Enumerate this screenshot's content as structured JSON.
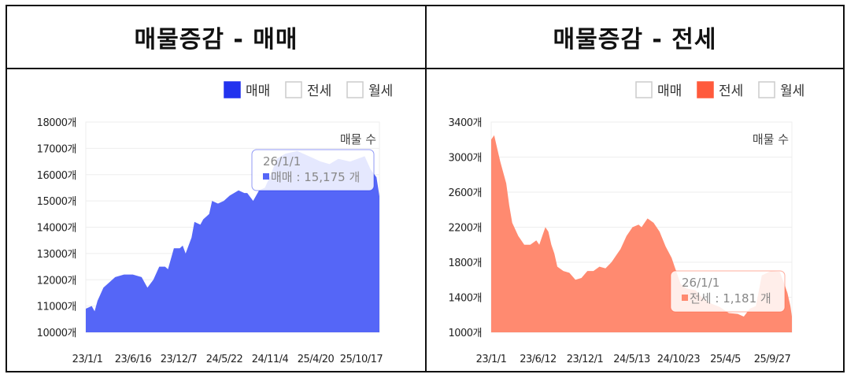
{
  "chart_data": [
    {
      "type": "area",
      "title": "매물증감 - 매매",
      "series_label": "매물 수",
      "legend": [
        {
          "name": "매매",
          "active": true
        },
        {
          "name": "전세",
          "active": false
        },
        {
          "name": "월세",
          "active": false
        }
      ],
      "color": "#5566f7",
      "legend_color": "#2233ee",
      "ylim": [
        10000,
        18000
      ],
      "yticks": [
        10000,
        11000,
        12000,
        13000,
        14000,
        15000,
        16000,
        17000,
        18000
      ],
      "ytick_suffix": "개",
      "xticks": [
        "23/1/1",
        "23/6/16",
        "23/12/7",
        "24/5/22",
        "24/11/4",
        "25/4/20",
        "25/10/17"
      ],
      "tooltip": {
        "date": "26/1/1",
        "label": "매매 : 15,175 개"
      },
      "points": [
        [
          0,
          10900
        ],
        [
          0.02,
          11000
        ],
        [
          0.03,
          10800
        ],
        [
          0.04,
          11200
        ],
        [
          0.06,
          11700
        ],
        [
          0.08,
          11900
        ],
        [
          0.1,
          12100
        ],
        [
          0.13,
          12200
        ],
        [
          0.16,
          12200
        ],
        [
          0.19,
          12100
        ],
        [
          0.2,
          11900
        ],
        [
          0.21,
          11700
        ],
        [
          0.23,
          12000
        ],
        [
          0.25,
          12500
        ],
        [
          0.27,
          12500
        ],
        [
          0.28,
          12400
        ],
        [
          0.3,
          13200
        ],
        [
          0.32,
          13200
        ],
        [
          0.33,
          13300
        ],
        [
          0.34,
          13000
        ],
        [
          0.36,
          13600
        ],
        [
          0.37,
          14200
        ],
        [
          0.39,
          14100
        ],
        [
          0.4,
          14300
        ],
        [
          0.42,
          14500
        ],
        [
          0.43,
          15000
        ],
        [
          0.45,
          14900
        ],
        [
          0.47,
          15000
        ],
        [
          0.49,
          15200
        ],
        [
          0.52,
          15400
        ],
        [
          0.54,
          15300
        ],
        [
          0.55,
          15300
        ],
        [
          0.57,
          15000
        ],
        [
          0.59,
          15400
        ],
        [
          0.61,
          15500
        ],
        [
          0.63,
          16000
        ],
        [
          0.65,
          16600
        ],
        [
          0.68,
          16800
        ],
        [
          0.72,
          16900
        ],
        [
          0.76,
          16700
        ],
        [
          0.8,
          16500
        ],
        [
          0.83,
          16400
        ],
        [
          0.86,
          16600
        ],
        [
          0.9,
          16500
        ],
        [
          0.95,
          16700
        ],
        [
          0.97,
          16200
        ],
        [
          0.99,
          15900
        ],
        [
          1,
          15175
        ]
      ]
    },
    {
      "type": "area",
      "title": "매물증감 - 전세",
      "series_label": "매물 수",
      "legend": [
        {
          "name": "매매",
          "active": false
        },
        {
          "name": "전세",
          "active": true
        },
        {
          "name": "월세",
          "active": false
        }
      ],
      "color": "#ff8a70",
      "legend_color": "#ff5a3c",
      "ylim": [
        1000,
        3400
      ],
      "yticks": [
        1000,
        1400,
        1800,
        2200,
        2600,
        3000,
        3400
      ],
      "ytick_suffix": "개",
      "xticks": [
        "23/1/1",
        "23/6/12",
        "23/12/1",
        "24/5/13",
        "24/10/23",
        "25/4/5",
        "25/9/27"
      ],
      "tooltip": {
        "date": "26/1/1",
        "label": "전세 : 1,181 개"
      },
      "points": [
        [
          0,
          3200
        ],
        [
          0.01,
          3250
        ],
        [
          0.02,
          3100
        ],
        [
          0.03,
          2950
        ],
        [
          0.05,
          2700
        ],
        [
          0.06,
          2450
        ],
        [
          0.07,
          2250
        ],
        [
          0.09,
          2100
        ],
        [
          0.11,
          2000
        ],
        [
          0.13,
          2000
        ],
        [
          0.15,
          2050
        ],
        [
          0.16,
          2000
        ],
        [
          0.17,
          2100
        ],
        [
          0.18,
          2200
        ],
        [
          0.19,
          2150
        ],
        [
          0.2,
          2000
        ],
        [
          0.21,
          1900
        ],
        [
          0.22,
          1750
        ],
        [
          0.24,
          1700
        ],
        [
          0.26,
          1680
        ],
        [
          0.28,
          1600
        ],
        [
          0.3,
          1620
        ],
        [
          0.32,
          1700
        ],
        [
          0.34,
          1700
        ],
        [
          0.36,
          1750
        ],
        [
          0.38,
          1730
        ],
        [
          0.4,
          1800
        ],
        [
          0.42,
          1900
        ],
        [
          0.43,
          1950
        ],
        [
          0.45,
          2100
        ],
        [
          0.47,
          2200
        ],
        [
          0.49,
          2230
        ],
        [
          0.5,
          2200
        ],
        [
          0.52,
          2300
        ],
        [
          0.54,
          2250
        ],
        [
          0.56,
          2150
        ],
        [
          0.58,
          1980
        ],
        [
          0.6,
          1850
        ],
        [
          0.61,
          1750
        ],
        [
          0.63,
          1550
        ],
        [
          0.65,
          1500
        ],
        [
          0.68,
          1480
        ],
        [
          0.7,
          1400
        ],
        [
          0.73,
          1330
        ],
        [
          0.76,
          1290
        ],
        [
          0.79,
          1220
        ],
        [
          0.82,
          1210
        ],
        [
          0.84,
          1180
        ],
        [
          0.86,
          1270
        ],
        [
          0.88,
          1300
        ],
        [
          0.9,
          1650
        ],
        [
          0.93,
          1700
        ],
        [
          0.96,
          1690
        ],
        [
          0.975,
          1550
        ],
        [
          0.985,
          1450
        ],
        [
          0.995,
          1300
        ],
        [
          1,
          1181
        ]
      ]
    }
  ]
}
